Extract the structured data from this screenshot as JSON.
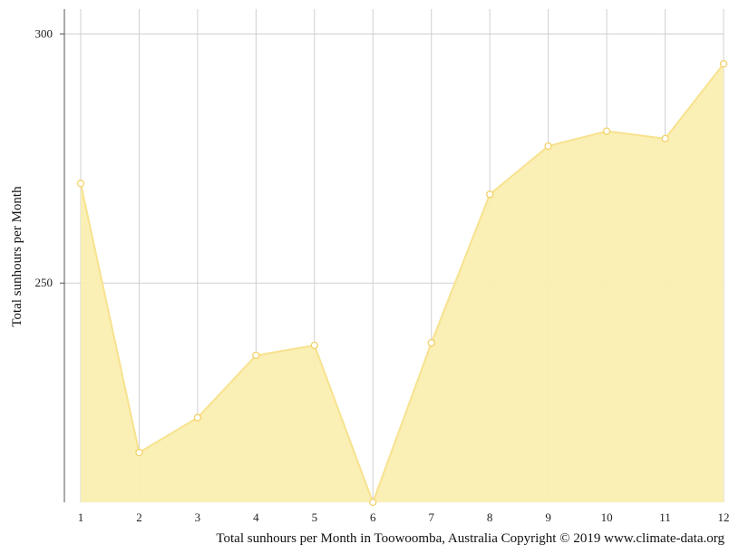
{
  "chart_data": {
    "type": "area",
    "x": [
      1,
      2,
      3,
      4,
      5,
      6,
      7,
      8,
      9,
      10,
      11,
      12
    ],
    "series": [
      {
        "values": [
          270,
          216,
          223,
          235.5,
          237.5,
          206,
          238,
          267.8,
          277.5,
          280.5,
          279,
          294
        ]
      }
    ],
    "title": "",
    "xlabel": "",
    "ylabel": "Total sunhours per Month",
    "caption": "Total sunhours per Month in Toowoomba, Australia Copyright © 2019 www.climate-data.org",
    "ylim": [
      206,
      305
    ],
    "yticks": [
      250,
      300
    ],
    "xticks": [
      1,
      2,
      3,
      4,
      5,
      6,
      7,
      8,
      9,
      10,
      11,
      12
    ],
    "grid": true,
    "legend": "none",
    "colors": {
      "fill": "#faeeb0",
      "line": "#f7e28f",
      "marker_stroke": "#f2d26a",
      "grid": "#d0d0d0",
      "axis": "#555555"
    }
  }
}
